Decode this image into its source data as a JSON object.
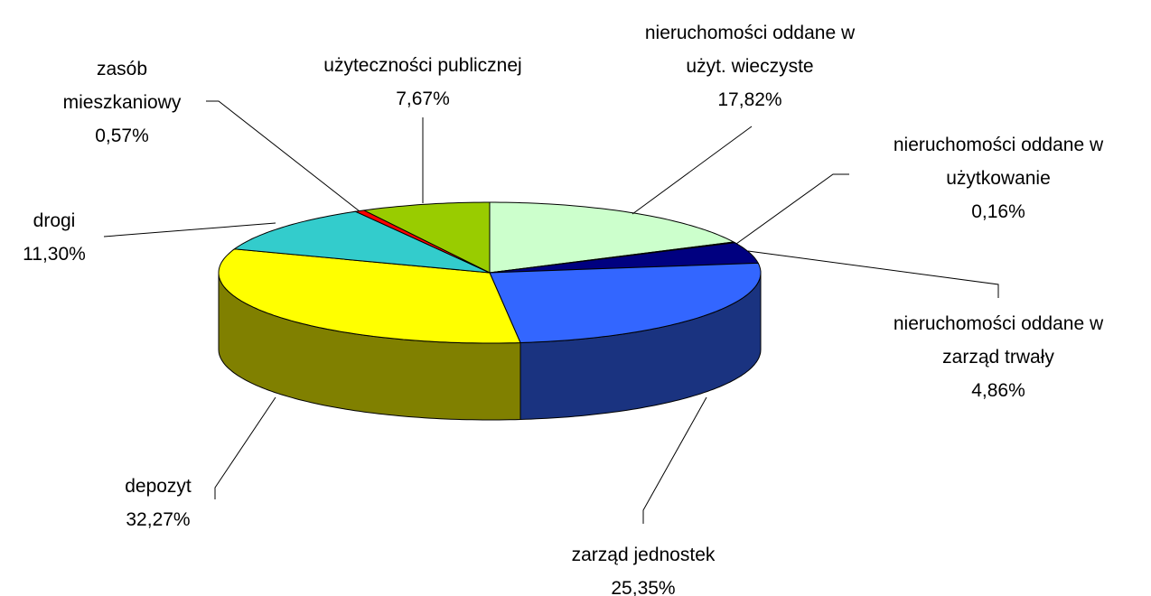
{
  "chart_data": {
    "type": "pie3d",
    "categories": [
      "nieruchomości oddane w użyt. wieczyste",
      "nieruchomości oddane w użytkowanie",
      "nieruchomości oddane w zarząd trwały",
      "zarząd jednostek",
      "depozyt",
      "drogi",
      "zasób mieszkaniowy",
      "użyteczności publicznej"
    ],
    "values": [
      17.82,
      0.16,
      4.86,
      25.35,
      32.27,
      11.3,
      0.57,
      7.67
    ],
    "value_labels": [
      "17,82%",
      "0,16%",
      "4,86%",
      "25,35%",
      "32,27%",
      "11,30%",
      "0,57%",
      "7,67%"
    ],
    "colors": [
      "#CCFFCC",
      "#993366",
      "#000080",
      "#3366FF",
      "#FFFF00",
      "#33CCCC",
      "#FF0000",
      "#99CC00"
    ]
  }
}
